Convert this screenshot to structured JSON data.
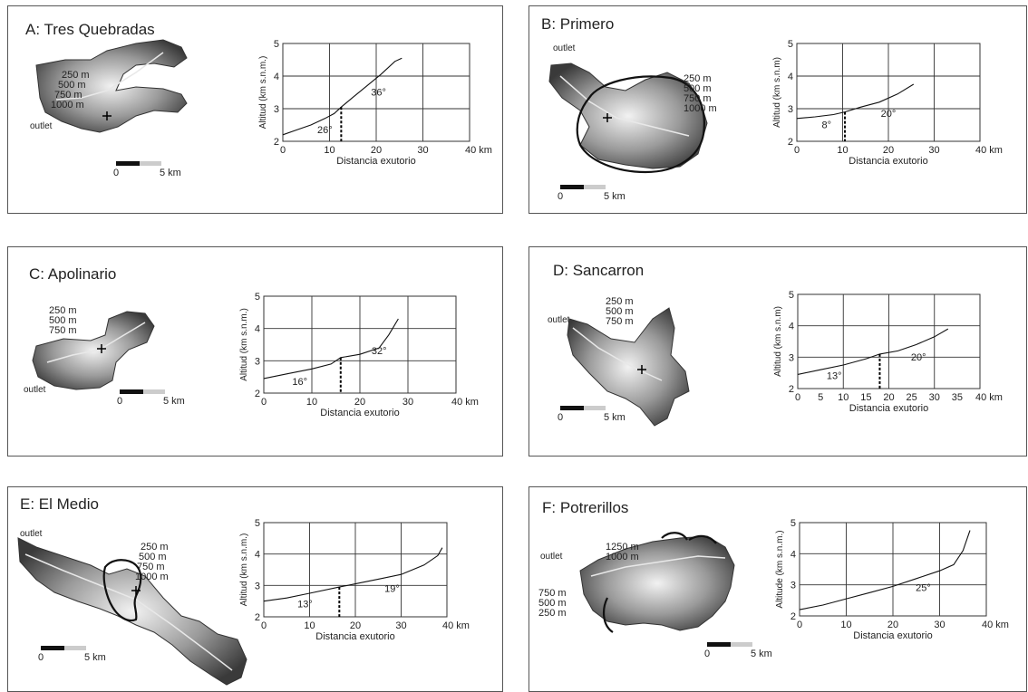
{
  "common": {
    "outlet_label": "outlet",
    "scale_zero": "0",
    "scale_label": "5 km",
    "xlabel": "Distancia exutorio",
    "ylabel": "Altitud (km s.n.m.)",
    "x_unit_suffix": " km"
  },
  "chart_data": [
    {
      "id": "A",
      "type": "line",
      "title": "A: Tres Quebradas",
      "xlabel": "Distancia exutorio",
      "ylabel": "Altitud (km s.n.m.)",
      "xlim": [
        0,
        40
      ],
      "ylim": [
        2,
        5
      ],
      "xticks": [
        0,
        10,
        20,
        30,
        40
      ],
      "yticks": [
        2,
        3,
        4,
        5
      ],
      "grid": true,
      "x": [
        0,
        3,
        6,
        9,
        11,
        12.5,
        15,
        18,
        21,
        24,
        25.5
      ],
      "y": [
        2.2,
        2.35,
        2.5,
        2.7,
        2.85,
        3.05,
        3.35,
        3.7,
        4.05,
        4.45,
        4.55
      ],
      "break_x": 12.5,
      "slopes": [
        {
          "label": "26°",
          "x": 9,
          "y": 2.25
        },
        {
          "label": "36°",
          "x": 20.5,
          "y": 3.4
        }
      ],
      "contours": [
        "250 m",
        "500 m",
        "750 m",
        "1000 m"
      ]
    },
    {
      "id": "B",
      "type": "line",
      "title": "B: Primero",
      "xlabel": "Distancia exutorio",
      "ylabel": "Altitud (km s.n.m)",
      "xlim": [
        0,
        40
      ],
      "ylim": [
        2,
        5
      ],
      "xticks": [
        0,
        10,
        20,
        30,
        40
      ],
      "yticks": [
        2,
        3,
        4,
        5
      ],
      "grid": true,
      "x": [
        0,
        4,
        8,
        10.5,
        14,
        18,
        22,
        25.5
      ],
      "y": [
        2.7,
        2.75,
        2.82,
        2.9,
        3.05,
        3.2,
        3.45,
        3.75
      ],
      "break_x": 10.5,
      "slopes": [
        {
          "label": "8°",
          "x": 6.5,
          "y": 2.4
        },
        {
          "label": "20°",
          "x": 20,
          "y": 2.75
        }
      ],
      "contours": [
        "250 m",
        "500 m",
        "750 m",
        "1000 m"
      ]
    },
    {
      "id": "C",
      "type": "line",
      "title": "C: Apolinario",
      "xlabel": "Distancia exutorio",
      "ylabel": "Altitud (km s.n.m.)",
      "xlim": [
        0,
        40
      ],
      "ylim": [
        2,
        5
      ],
      "xticks": [
        0,
        10,
        20,
        30,
        40
      ],
      "yticks": [
        2,
        3,
        4,
        5
      ],
      "grid": true,
      "x": [
        0,
        5,
        10,
        14,
        16,
        20,
        24,
        26,
        28
      ],
      "y": [
        2.45,
        2.6,
        2.75,
        2.9,
        3.1,
        3.2,
        3.4,
        3.8,
        4.3
      ],
      "break_x": 16,
      "slopes": [
        {
          "label": "16°",
          "x": 7.5,
          "y": 2.25
        },
        {
          "label": "32°",
          "x": 24,
          "y": 3.2
        }
      ],
      "contours": [
        "250 m",
        "500 m",
        "750 m"
      ]
    },
    {
      "id": "D",
      "type": "line",
      "title": "D: Sancarron",
      "xlabel": "Distancia exutorio",
      "ylabel": "Altitud (km s.n.m)",
      "xlim": [
        0,
        40
      ],
      "ylim": [
        2,
        5
      ],
      "xticks": [
        0,
        5,
        10,
        15,
        20,
        25,
        30,
        35,
        40
      ],
      "yticks": [
        2,
        3,
        4,
        5
      ],
      "grid": true,
      "x": [
        0,
        5,
        10,
        15,
        18,
        22,
        26,
        30,
        33
      ],
      "y": [
        2.45,
        2.6,
        2.75,
        2.95,
        3.1,
        3.2,
        3.4,
        3.65,
        3.9
      ],
      "break_x": 18,
      "slopes": [
        {
          "label": "13°",
          "x": 8,
          "y": 2.3
        },
        {
          "label": "20°",
          "x": 26.5,
          "y": 2.9
        }
      ],
      "contours": [
        "250 m",
        "500 m",
        "750 m"
      ]
    },
    {
      "id": "E",
      "type": "line",
      "title": "E: El Medio",
      "xlabel": "Distancia exutorio",
      "ylabel": "Altitud (km s.n.m.)",
      "xlim": [
        0,
        40
      ],
      "ylim": [
        2,
        5
      ],
      "xticks": [
        0,
        10,
        20,
        30,
        40
      ],
      "yticks": [
        2,
        3,
        4,
        5
      ],
      "grid": true,
      "x": [
        0,
        5,
        10,
        16.5,
        20,
        25,
        30,
        35,
        38,
        39
      ],
      "y": [
        2.5,
        2.6,
        2.75,
        2.95,
        3.05,
        3.2,
        3.35,
        3.65,
        3.95,
        4.2
      ],
      "break_x": 16.5,
      "slopes": [
        {
          "label": "13°",
          "x": 9,
          "y": 2.3
        },
        {
          "label": "19°",
          "x": 28,
          "y": 2.8
        }
      ],
      "contours": [
        "250 m",
        "500 m",
        "750 m",
        "1000 m"
      ]
    },
    {
      "id": "F",
      "type": "line",
      "title": "F: Potrerillos",
      "xlabel": "Distancia exutorio",
      "ylabel": "Altitude (km s.n.m.)",
      "xlim": [
        0,
        40
      ],
      "ylim": [
        2,
        5
      ],
      "xticks": [
        0,
        10,
        20,
        30,
        40
      ],
      "yticks": [
        2,
        3,
        4,
        5
      ],
      "grid": true,
      "x": [
        0,
        5,
        10,
        15,
        20,
        25,
        30,
        33,
        35,
        36.5
      ],
      "y": [
        2.2,
        2.35,
        2.55,
        2.75,
        2.95,
        3.2,
        3.45,
        3.65,
        4.1,
        4.75
      ],
      "break_x": null,
      "slopes": [
        {
          "label": "25°",
          "x": 26.5,
          "y": 2.8
        }
      ],
      "contours": [
        "1250 m",
        "1000 m",
        "750 m",
        "500 m",
        "250 m"
      ]
    }
  ]
}
